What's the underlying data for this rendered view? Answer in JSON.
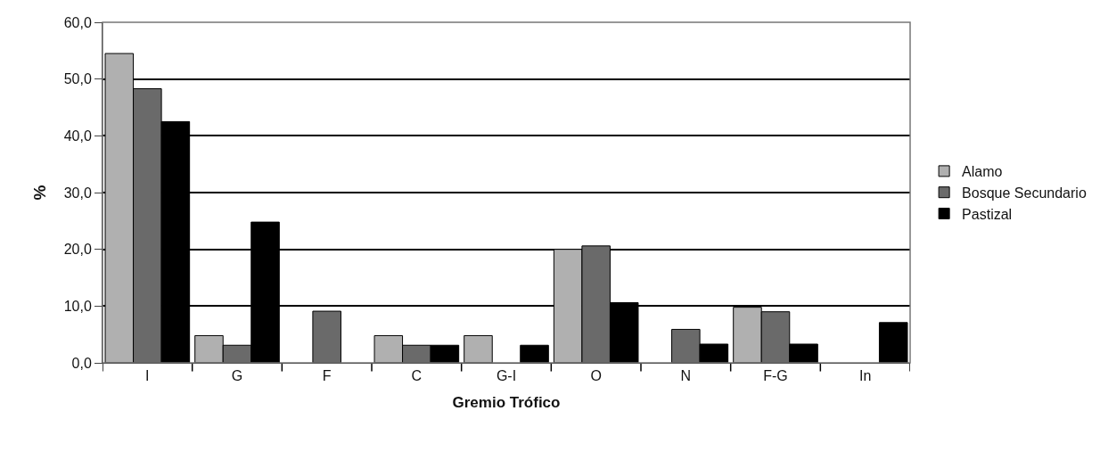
{
  "chart_data": {
    "type": "bar",
    "xlabel": "Gremio Trófico",
    "ylabel": "%",
    "categories": [
      "I",
      "G",
      "F",
      "C",
      "G-I",
      "O",
      "N",
      "F-G",
      "In"
    ],
    "series": [
      {
        "name": "Alamo",
        "color": "#b0b0b0",
        "values": [
          54.5,
          4.8,
          null,
          4.8,
          4.8,
          20.0,
          null,
          9.8,
          null
        ]
      },
      {
        "name": "Bosque Secundario",
        "color": "#6a6a6a",
        "values": [
          48.3,
          3.1,
          9.1,
          3.1,
          null,
          20.6,
          5.9,
          9.0,
          null
        ]
      },
      {
        "name": "Pastizal",
        "color": "#000000",
        "values": [
          42.5,
          24.8,
          null,
          3.1,
          3.1,
          10.6,
          3.3,
          3.3,
          7.1
        ]
      }
    ],
    "ylim": [
      0,
      60
    ],
    "yticks": [
      {
        "value": 0,
        "label": "0,0"
      },
      {
        "value": 10,
        "label": "10,0"
      },
      {
        "value": 20,
        "label": "20,0"
      },
      {
        "value": 30,
        "label": "30,0"
      },
      {
        "value": 40,
        "label": "40,0"
      },
      {
        "value": 50,
        "label": "50,0"
      },
      {
        "value": 60,
        "label": "60,0"
      }
    ],
    "grid": "y",
    "legend": "right"
  }
}
